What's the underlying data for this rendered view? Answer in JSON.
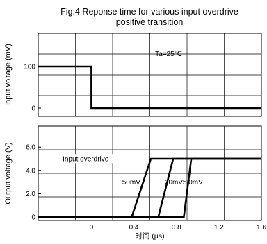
{
  "title_line1": "Fig.4 Reponse time for various input overdrive",
  "title_line2": "positive transition",
  "chart_data": [
    {
      "type": "line",
      "panel": "input",
      "ylabel": "Input voltage  (mV)",
      "xlim": [
        -0.5,
        1.6
      ],
      "ylim": [
        -20,
        180
      ],
      "yticks": [
        {
          "v": 100,
          "label": "100"
        },
        {
          "v": 0,
          "label": "0"
        }
      ],
      "grid": true,
      "annotation": {
        "text": "Ta=25℃",
        "x": 0.6,
        "y": 125
      },
      "series": [
        {
          "x": [
            -0.5,
            0,
            0,
            1.6
          ],
          "y": [
            100,
            100,
            0,
            0
          ]
        }
      ]
    },
    {
      "type": "line",
      "panel": "output",
      "ylabel": "Output voltage  (V)",
      "xlabel": "时间  (μs)",
      "xlim": [
        -0.5,
        1.6
      ],
      "ylim": [
        -0.3,
        7.8
      ],
      "yticks": [
        {
          "v": 6.0,
          "label": "6.0"
        },
        {
          "v": 4.0,
          "label": "4.0"
        },
        {
          "v": 2.0,
          "label": "2.0"
        },
        {
          "v": 0,
          "label": "0"
        }
      ],
      "xticks": [
        {
          "v": 0,
          "label": "0"
        },
        {
          "v": 0.4,
          "label": "0.4"
        },
        {
          "v": 0.8,
          "label": "0.8"
        },
        {
          "v": 1.2,
          "label": "1.2"
        },
        {
          "v": 1.6,
          "label": "1.6"
        }
      ],
      "grid": true,
      "annotations": [
        {
          "text": "Input overdrive",
          "x": -0.27,
          "y": 4.8
        },
        {
          "text": "50mV",
          "x": 0.29,
          "y": 2.8
        },
        {
          "text": "20mV",
          "x": 0.69,
          "y": 2.8
        },
        {
          "text": "5.0mV",
          "x": 0.86,
          "y": 2.8
        }
      ],
      "series": [
        {
          "name": "50mV",
          "x": [
            -0.5,
            0.38,
            0.56,
            1.6
          ],
          "y": [
            0,
            0,
            5.0,
            5.0
          ]
        },
        {
          "name": "20mV",
          "x": [
            -0.5,
            0.63,
            0.77,
            1.6
          ],
          "y": [
            0,
            0,
            5.0,
            5.0
          ]
        },
        {
          "name": "5.0mV",
          "x": [
            -0.5,
            0.87,
            0.94,
            1.6
          ],
          "y": [
            0,
            0,
            5.0,
            5.0
          ]
        }
      ]
    }
  ]
}
